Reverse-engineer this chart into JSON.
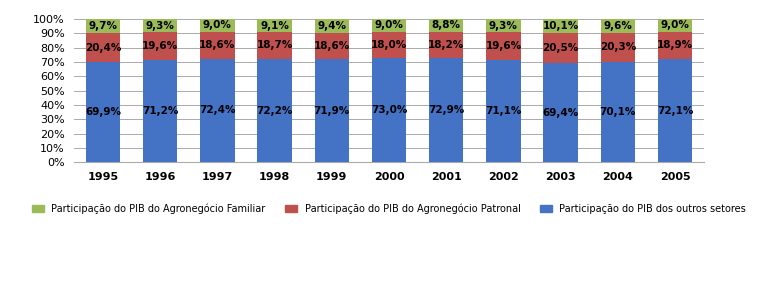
{
  "years": [
    "1995",
    "1996",
    "1997",
    "1998",
    "1999",
    "2000",
    "2001",
    "2002",
    "2003",
    "2004",
    "2005"
  ],
  "blue": [
    69.9,
    71.2,
    72.4,
    72.2,
    71.9,
    73.0,
    72.9,
    71.1,
    69.4,
    70.1,
    72.1
  ],
  "red": [
    20.4,
    19.6,
    18.6,
    18.7,
    18.6,
    18.0,
    18.2,
    19.6,
    20.5,
    20.3,
    18.9
  ],
  "green": [
    9.7,
    9.3,
    9.0,
    9.1,
    9.4,
    9.0,
    8.8,
    9.3,
    10.1,
    9.6,
    9.0
  ],
  "blue_labels": [
    "69,9%",
    "71,2%",
    "72,4%",
    "72,2%",
    "71,9%",
    "73,0%",
    "72,9%",
    "71,1%",
    "69,4%",
    "70,1%",
    "72,1%"
  ],
  "red_labels": [
    "20,4%",
    "19,6%",
    "18,6%",
    "18,7%",
    "18,6%",
    "18,0%",
    "18,2%",
    "19,6%",
    "20,5%",
    "20,3%",
    "18,9%"
  ],
  "green_labels": [
    "9,7%",
    "9,3%",
    "9,0%",
    "9,1%",
    "9,4%",
    "9,0%",
    "8,8%",
    "9,3%",
    "10,1%",
    "9,6%",
    "9,0%"
  ],
  "color_blue": "#4472C4",
  "color_red": "#C0504D",
  "color_green": "#9BBB59",
  "legend_familiar": "Participação do PIB do Agronegócio Familiar",
  "legend_patronal": "Participação do PIB do Agronegócio Patronal",
  "legend_outros": "Participação do PIB dos outros setores",
  "ylim": [
    0,
    100
  ],
  "yticks": [
    0,
    10,
    20,
    30,
    40,
    50,
    60,
    70,
    80,
    90,
    100
  ],
  "ytick_labels": [
    "0%",
    "10%",
    "20%",
    "30%",
    "40%",
    "50%",
    "60%",
    "70%",
    "80%",
    "90%",
    "100%"
  ],
  "bar_width": 0.6,
  "bg_color": "#FFFFFF",
  "grid_color": "#AAAAAA",
  "font_size_labels": 7.5,
  "font_size_ticks": 8,
  "font_size_legend": 7
}
